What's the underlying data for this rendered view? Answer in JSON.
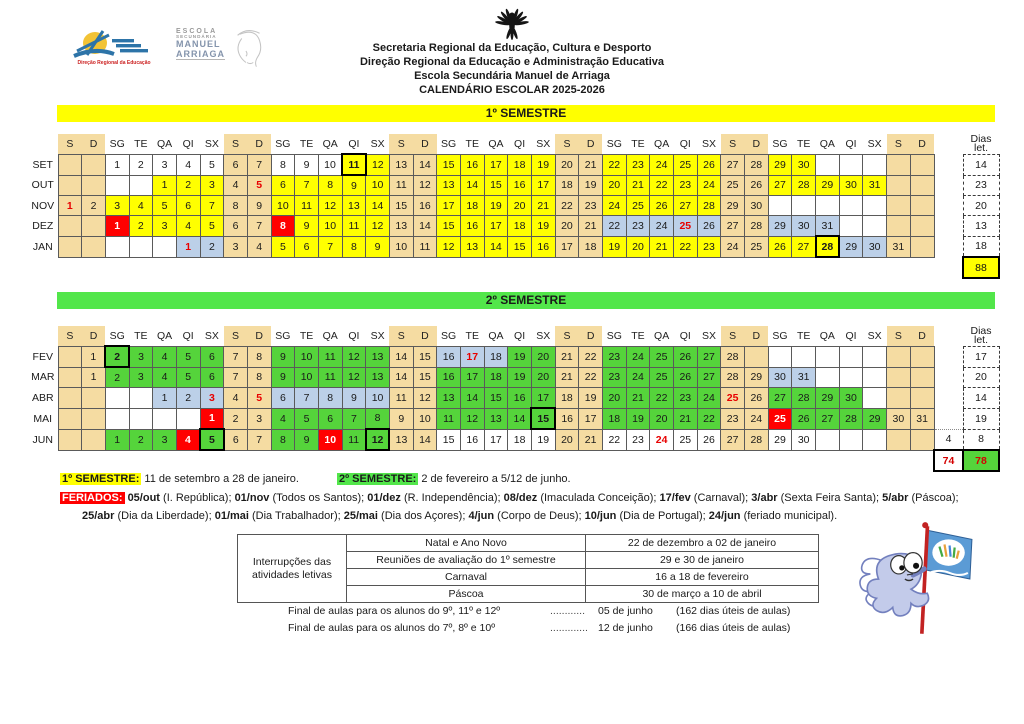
{
  "header": {
    "logo1_caption": "Direção Regional da Educação",
    "logo2_lines": [
      "ESCOLA",
      "SECUNDÁRIA",
      "MANUEL",
      "ARRIAGA"
    ],
    "org_lines": [
      "Secretaria Regional da Educação, Cultura e Desporto",
      "Direção Regional da Educação e Administração Educativa",
      "Escola Secundária Manuel de Arriaga",
      "CALENDÁRIO ESCOLAR 2025-2026"
    ]
  },
  "bands": {
    "semester1": "1º SEMESTRE",
    "semester2": "2º SEMESTRE"
  },
  "dias_header": {
    "l1": "Dias",
    "l2": "let."
  },
  "day_headers": [
    "S",
    "D",
    "SG",
    "TE",
    "QA",
    "QI",
    "SX",
    "S",
    "D",
    "SG",
    "TE",
    "QA",
    "QI",
    "SX",
    "S",
    "D",
    "SG",
    "TE",
    "QA",
    "QI",
    "SX",
    "S",
    "D",
    "SG",
    "TE",
    "QA",
    "QI",
    "SX",
    "S",
    "D",
    "SG",
    "TE",
    "QA",
    "QI",
    "SX",
    "S",
    "D"
  ],
  "table1": {
    "months": [
      {
        "name": "SET",
        "dias": "14",
        "cells": [
          ",t",
          ",t",
          "1,w",
          "2,w",
          "3,w",
          "4,w",
          "5,w",
          "6,t",
          "7,t",
          "8,w",
          "9,w",
          "10,w",
          "11,y,B",
          "12,y",
          "13,t",
          "14,t",
          "15,y",
          "16,y",
          "17,y",
          "18,y",
          "19,y",
          "20,t",
          "21,t",
          "22,y",
          "23,y",
          "24,y",
          "25,y",
          "26,y",
          "27,t",
          "28,t",
          "29,y",
          "30,y",
          ",w",
          ",w",
          ",w",
          ",t",
          ",t"
        ]
      },
      {
        "name": "OUT",
        "dias": "23",
        "cells": [
          ",t",
          ",t",
          ",w",
          ",w",
          "1,y",
          "2,y",
          "3,y",
          "4,t",
          "5,t,R",
          "6,y",
          "7,y",
          "8,y",
          "9,y",
          "10,y",
          "11,t",
          "12,t",
          "13,y",
          "14,y",
          "15,y",
          "16,y",
          "17,y",
          "18,t",
          "19,t",
          "20,y",
          "21,y",
          "22,y",
          "23,y",
          "24,y",
          "25,t",
          "26,t",
          "27,y",
          "28,y",
          "29,y",
          "30,y",
          "31,y",
          ",t",
          ",t"
        ]
      },
      {
        "name": "NOV",
        "dias": "20",
        "cells": [
          "1,t,R",
          "2,t",
          "3,y",
          "4,y",
          "5,y",
          "6,y",
          "7,y",
          "8,t",
          "9,t",
          "10,y",
          "11,y",
          "12,y",
          "13,y",
          "14,y",
          "15,t",
          "16,t",
          "17,y",
          "18,y",
          "19,y",
          "20,y",
          "21,y",
          "22,t",
          "23,t",
          "24,y",
          "25,y",
          "26,y",
          "27,y",
          "28,y",
          "29,t",
          "30,t",
          ",w",
          ",w",
          ",w",
          ",w",
          ",w",
          ",t",
          ",t"
        ]
      },
      {
        "name": "DEZ",
        "dias": "13",
        "cells": [
          ",t",
          ",t",
          "1,r",
          "2,y",
          "3,y",
          "4,y",
          "5,y",
          "6,t",
          "7,t",
          "8,r",
          "9,y",
          "10,y",
          "11,y",
          "12,y",
          "13,t",
          "14,t",
          "15,y",
          "16,y",
          "17,y",
          "18,y",
          "19,y",
          "20,t",
          "21,t",
          "22,b",
          "23,b",
          "24,b",
          "25,b,R",
          "26,b",
          "27,t",
          "28,t",
          "29,b",
          "30,b",
          "31,b",
          ",w",
          ",w",
          ",t",
          ",t"
        ]
      },
      {
        "name": "JAN",
        "dias": "18",
        "cells": [
          ",t",
          ",t",
          ",w",
          ",w",
          ",w",
          "1,b,R",
          "2,b",
          "3,t",
          "4,t",
          "5,y",
          "6,y",
          "7,y",
          "8,y",
          "9,y",
          "10,t",
          "11,t",
          "12,y",
          "13,y",
          "14,y",
          "15,y",
          "16,y",
          "17,t",
          "18,t",
          "19,y",
          "20,y",
          "21,y",
          "22,y",
          "23,y",
          "24,t",
          "25,t",
          "26,y",
          "27,y",
          "28,y,B",
          "29,b",
          "30,b",
          "31,t",
          ",t"
        ]
      }
    ],
    "total": "88",
    "total_style": "yellow"
  },
  "table2": {
    "months": [
      {
        "name": "FEV",
        "dias": "17",
        "cells": [
          ",t",
          "1,t",
          "2,g,B",
          "3,g",
          "4,g",
          "5,g",
          "6,g",
          "7,t",
          "8,t",
          "9,g",
          "10,g",
          "11,g",
          "12,g",
          "13,g",
          "14,t",
          "15,t",
          "16,b",
          "17,b,R",
          "18,b",
          "19,g",
          "20,g",
          "21,t",
          "22,t",
          "23,g",
          "24,g",
          "25,g",
          "26,g",
          "27,g",
          "28,t",
          ",t",
          ",w",
          ",w",
          ",w",
          ",w",
          ",w",
          ",t",
          ",t"
        ]
      },
      {
        "name": "MAR",
        "dias": "20",
        "cells": [
          ",t",
          "1,t",
          "2,g",
          "3,g",
          "4,g",
          "5,g",
          "6,g",
          "7,t",
          "8,t",
          "9,g",
          "10,g",
          "11,g",
          "12,g",
          "13,g",
          "14,t",
          "15,t",
          "16,g",
          "17,g",
          "18,g",
          "19,g",
          "20,g",
          "21,t",
          "22,t",
          "23,g",
          "24,g",
          "25,g",
          "26,g",
          "27,g",
          "28,t",
          "29,t",
          "30,b",
          "31,b",
          ",w",
          ",w",
          ",w",
          ",t",
          ",t"
        ]
      },
      {
        "name": "ABR",
        "dias": "14",
        "cells": [
          ",t",
          ",t",
          ",w",
          ",w",
          "1,b",
          "2,b",
          "3,b,R",
          "4,t",
          "5,t,R",
          "6,b",
          "7,b",
          "8,b",
          "9,b",
          "10,b",
          "11,t",
          "12,t",
          "13,g",
          "14,g",
          "15,g",
          "16,g",
          "17,g",
          "18,t",
          "19,t",
          "20,g",
          "21,g",
          "22,g",
          "23,g",
          "24,g",
          "25,t,R",
          "26,t",
          "27,g",
          "28,g",
          "29,g",
          "30,g",
          ",w",
          ",t",
          ",t"
        ]
      },
      {
        "name": "MAI",
        "dias": "19",
        "cells": [
          ",t",
          ",t",
          ",w",
          ",w",
          ",w",
          ",w",
          "1,r",
          "2,t",
          "3,t",
          "4,g",
          "5,g",
          "6,g",
          "7,g",
          "8,g",
          "9,t",
          "10,t",
          "11,g",
          "12,g",
          "13,g",
          "14,g",
          "15,g,B",
          "16,t",
          "17,t",
          "18,g",
          "19,g",
          "20,g",
          "21,g",
          "22,g",
          "23,t",
          "24,t",
          "25,r",
          "26,g",
          "27,g",
          "28,g",
          "29,g",
          "30,t",
          "31,t"
        ]
      },
      {
        "name": "JUN",
        "dias": "8",
        "extra": "4",
        "cells": [
          ",t",
          ",t",
          "1,g",
          "2,g",
          "3,g",
          "4,r",
          "5,g,B",
          "6,t",
          "7,t",
          "8,g",
          "9,g",
          "10,r",
          "11,g",
          "12,g,B",
          "13,t",
          "14,t",
          "15,w",
          "16,w",
          "17,w",
          "18,w",
          "19,w",
          "20,t",
          "21,t",
          "22,w",
          "23,w",
          "24,w,R",
          "25,w",
          "26,w",
          "27,t",
          "28,t",
          "29,w",
          "30,w",
          ",w",
          ",w",
          ",w",
          ",t",
          ",t"
        ]
      }
    ],
    "total_extra": "74",
    "total": "78",
    "total_style": "green"
  },
  "legend": {
    "sem1_label": "1º SEMESTRE:",
    "sem1_text": " 11 de setembro a 28 de janeiro.",
    "sem2_label": "2º SEMESTRE:",
    "sem2_text": " 2 de fevereiro a 5/12 de junho.",
    "feriados_label": "FERIADOS:",
    "feriados_line1": [
      [
        "05/out",
        1
      ],
      [
        " (I. República); ",
        0
      ],
      [
        "01/nov",
        1
      ],
      [
        " (Todos os Santos); ",
        0
      ],
      [
        "01/dez",
        1
      ],
      [
        " (R. Independência); ",
        0
      ],
      [
        "08/dez",
        1
      ],
      [
        " (Imaculada Conceição); ",
        0
      ],
      [
        "17/fev",
        1
      ],
      [
        " (Carnaval); ",
        0
      ],
      [
        "3/abr",
        1
      ],
      [
        " (Sexta Feira Santa); ",
        0
      ],
      [
        "5/abr",
        1
      ],
      [
        " (Páscoa);",
        0
      ]
    ],
    "feriados_line2": [
      [
        "25/abr",
        1
      ],
      [
        " (Dia da Liberdade); ",
        0
      ],
      [
        "01/mai",
        1
      ],
      [
        " (Dia Trabalhador); ",
        0
      ],
      [
        "25/mai",
        1
      ],
      [
        " (Dia dos Açores); ",
        0
      ],
      [
        "4/jun",
        1
      ],
      [
        " (Corpo de Deus); ",
        0
      ],
      [
        "10/jun",
        1
      ],
      [
        " (Dia de Portugal); ",
        0
      ],
      [
        "24/jun",
        1
      ],
      [
        " (feriado municipal).",
        0
      ]
    ]
  },
  "interruptions": {
    "header": "Interrupções das atividades letivas",
    "rows": [
      {
        "name": "Natal e Ano Novo",
        "dates": "22 de dezembro a 02 de janeiro"
      },
      {
        "name": "Reuniões de avaliação do 1º semestre",
        "dates": "29 e 30 de janeiro"
      },
      {
        "name": "Carnaval",
        "dates": "16 a 18 de fevereiro"
      },
      {
        "name": "Páscoa",
        "dates": "30 de março a 10 de abril"
      }
    ]
  },
  "final_notes": [
    {
      "text": "Final de aulas para os alunos do 9º, 11º e 12º",
      "dots": "............",
      "date": "05 de junho",
      "days": "(162 dias úteis de aulas)"
    },
    {
      "text": "Final de aulas para os alunos do 7º, 8º e 10º",
      "dots": ".............",
      "date": "12 de junho",
      "days": "(166 dias úteis de aulas)"
    }
  ],
  "colors": {
    "semester1_school_day": "#FFFF00",
    "semester2_school_day": "#55D43B",
    "weekend": "#F5DCA2",
    "interruption": "#BCD0E8",
    "holiday": "#FF0000"
  }
}
